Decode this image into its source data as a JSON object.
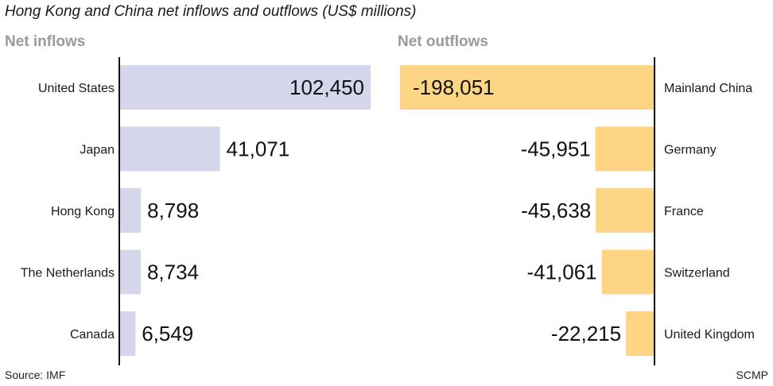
{
  "title": "Hong Kong and China net inflows and outflows (US$ millions)",
  "source": "Source: IMF",
  "credit": "SCMP",
  "colors": {
    "inflow": "#d5d6ec",
    "outflow": "#fdd584",
    "axis": "#111111"
  },
  "chart_data": [
    {
      "type": "bar",
      "orientation": "horizontal",
      "title": "Net inflows",
      "categories": [
        "United States",
        "Japan",
        "Hong Kong",
        "The Netherlands",
        "Canada"
      ],
      "values": [
        102450,
        41071,
        8798,
        8734,
        6549
      ],
      "value_labels": [
        "102,450",
        "41,071",
        "8,798",
        "8,734",
        "6,549"
      ],
      "direction": "right"
    },
    {
      "type": "bar",
      "orientation": "horizontal",
      "title": "Net outflows",
      "categories": [
        "Mainland China",
        "Germany",
        "France",
        "Switzerland",
        "United Kingdom"
      ],
      "values": [
        -198051,
        -45951,
        -45638,
        -41061,
        -22215
      ],
      "value_labels": [
        "-198,051",
        "-45,951",
        "-45,638",
        "-41,061",
        "-22,215"
      ],
      "direction": "left"
    }
  ]
}
